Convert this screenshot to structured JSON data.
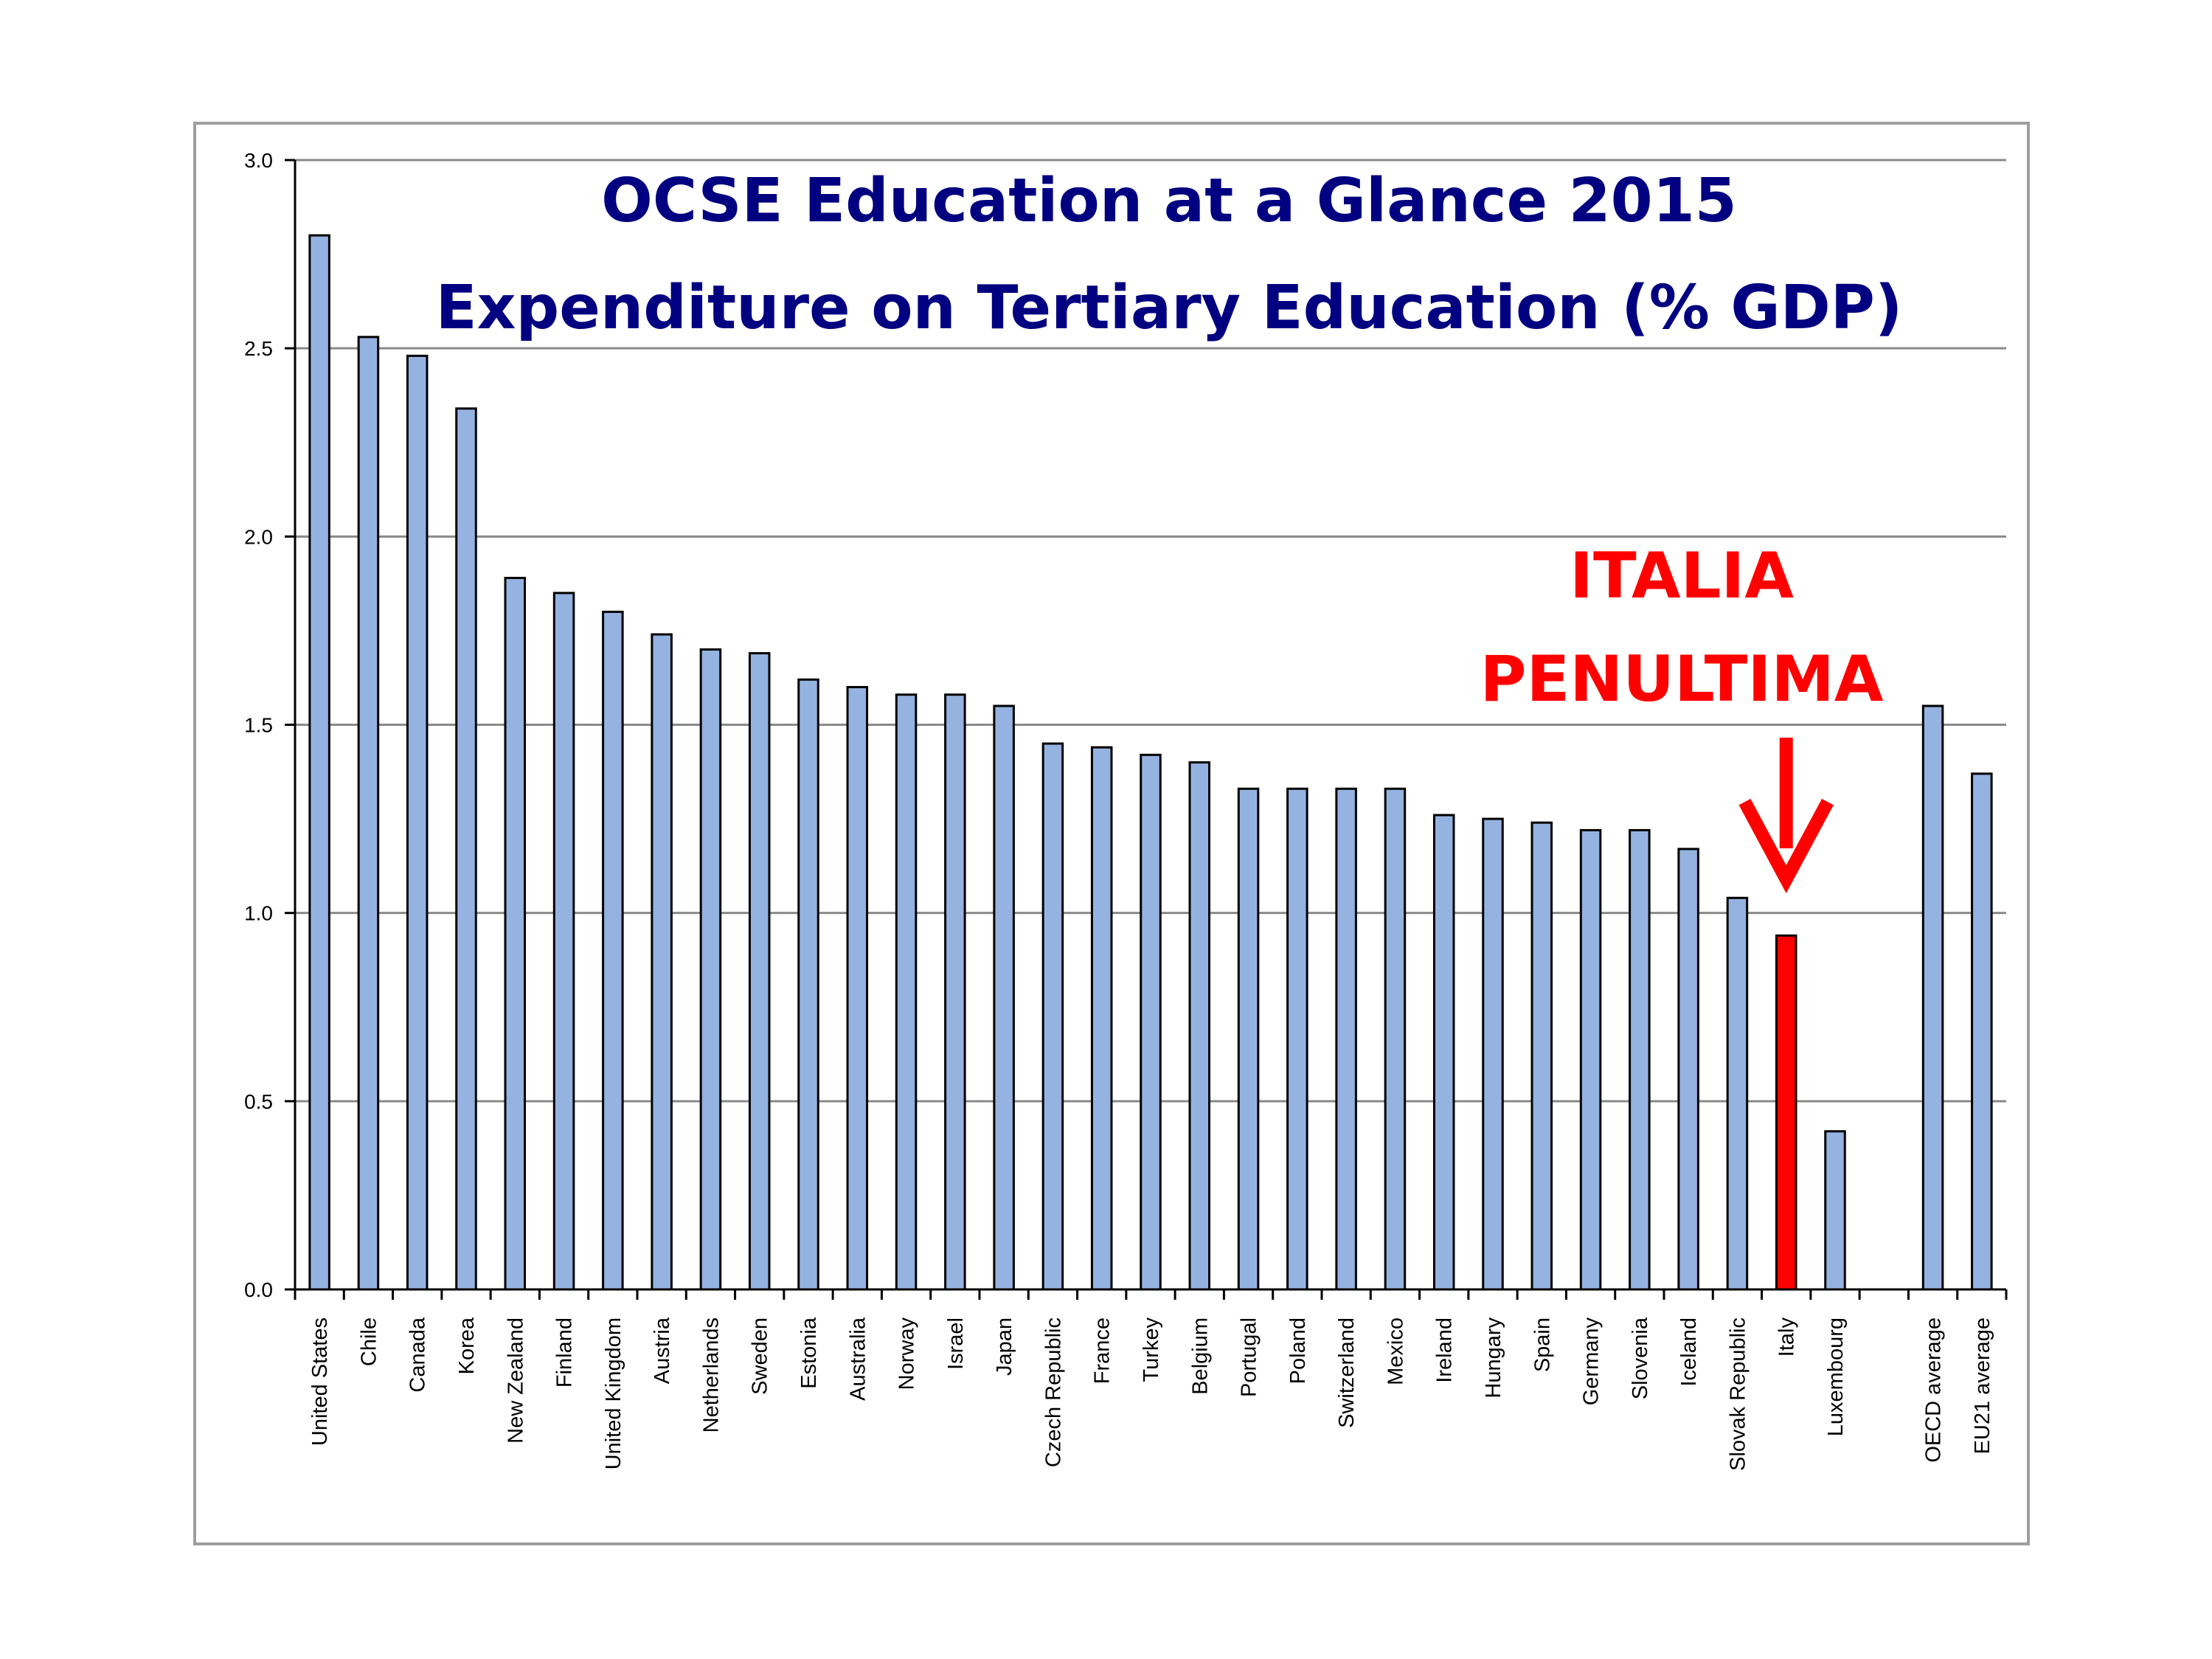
{
  "chart_data": {
    "type": "bar",
    "title": "OCSE Education at a Glance 2015",
    "subtitle": "Expenditure on Tertiary Education (% GDP)",
    "categories": [
      "United States",
      "Chile",
      "Canada",
      "Korea",
      "New Zealand",
      "Finland",
      "United Kingdom",
      "Austria",
      "Netherlands",
      "Sweden",
      "Estonia",
      "Australia",
      "Norway",
      "Israel",
      "Japan",
      "Czech Republic",
      "France",
      "Turkey",
      "Belgium",
      "Portugal",
      "Poland",
      "Switzerland",
      "Mexico",
      "Ireland",
      "Hungary",
      "Spain",
      "Germany",
      "Slovenia",
      "Iceland",
      "Slovak Republic",
      "Italy",
      "Luxembourg",
      "",
      "OECD average",
      "EU21 average"
    ],
    "values": [
      2.8,
      2.53,
      2.48,
      2.34,
      1.89,
      1.85,
      1.8,
      1.74,
      1.7,
      1.69,
      1.62,
      1.6,
      1.58,
      1.58,
      1.55,
      1.45,
      1.44,
      1.42,
      1.4,
      1.33,
      1.33,
      1.33,
      1.33,
      1.26,
      1.25,
      1.24,
      1.22,
      1.22,
      1.17,
      1.04,
      0.94,
      0.42,
      null,
      1.55,
      1.37
    ],
    "highlight_index": 30,
    "bar_color": "#95b3e0",
    "highlight_color": "#ff0000",
    "ylim": [
      0,
      3.0
    ],
    "yticks": [
      "0.0",
      "0.5",
      "1.0",
      "1.5",
      "2.0",
      "2.5",
      "3.0"
    ],
    "grid": true,
    "xlabel": "",
    "ylabel": "",
    "annotation": {
      "lines": [
        "ITALIA",
        "PENULTIMA"
      ],
      "color": "#ff0000",
      "target_index": 30
    }
  }
}
